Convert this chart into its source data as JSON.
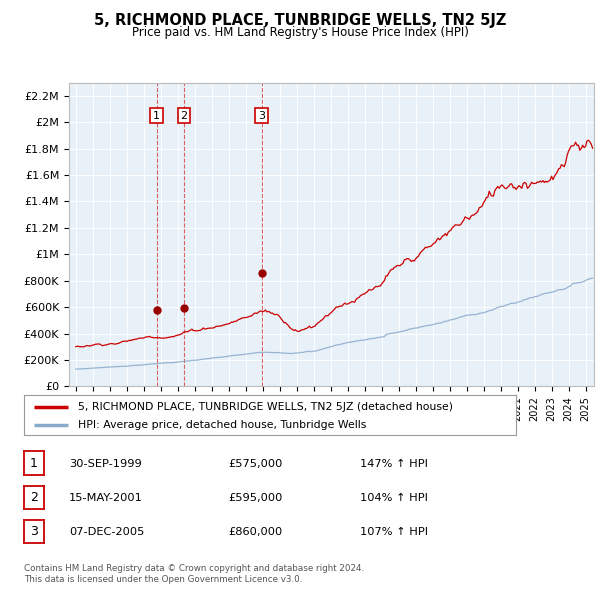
{
  "title": "5, RICHMOND PLACE, TUNBRIDGE WELLS, TN2 5JZ",
  "subtitle": "Price paid vs. HM Land Registry's House Price Index (HPI)",
  "legend_line1": "5, RICHMOND PLACE, TUNBRIDGE WELLS, TN2 5JZ (detached house)",
  "legend_line2": "HPI: Average price, detached house, Tunbridge Wells",
  "footer1": "Contains HM Land Registry data © Crown copyright and database right 2024.",
  "footer2": "This data is licensed under the Open Government Licence v3.0.",
  "sale_color": "#cc0000",
  "hpi_color": "#88aacc",
  "plot_bg": "#e8f0f8",
  "transactions": [
    {
      "num": 1,
      "date": "30-SEP-1999",
      "price": 575000,
      "hpi_pct": "147% ↑ HPI",
      "year_x": 1999.75
    },
    {
      "num": 2,
      "date": "15-MAY-2001",
      "price": 595000,
      "hpi_pct": "104% ↑ HPI",
      "year_x": 2001.37
    },
    {
      "num": 3,
      "date": "07-DEC-2005",
      "price": 860000,
      "hpi_pct": "107% ↑ HPI",
      "year_x": 2005.93
    }
  ],
  "ylim": [
    0,
    2300000
  ],
  "yticks": [
    0,
    200000,
    400000,
    600000,
    800000,
    1000000,
    1200000,
    1400000,
    1600000,
    1800000,
    2000000,
    2200000
  ],
  "xlim_start": 1994.6,
  "xlim_end": 2025.5,
  "xtick_years": [
    1995,
    1996,
    1997,
    1998,
    1999,
    2000,
    2001,
    2002,
    2003,
    2004,
    2005,
    2006,
    2007,
    2008,
    2009,
    2010,
    2011,
    2012,
    2013,
    2014,
    2015,
    2016,
    2017,
    2018,
    2019,
    2020,
    2021,
    2022,
    2023,
    2024,
    2025
  ]
}
